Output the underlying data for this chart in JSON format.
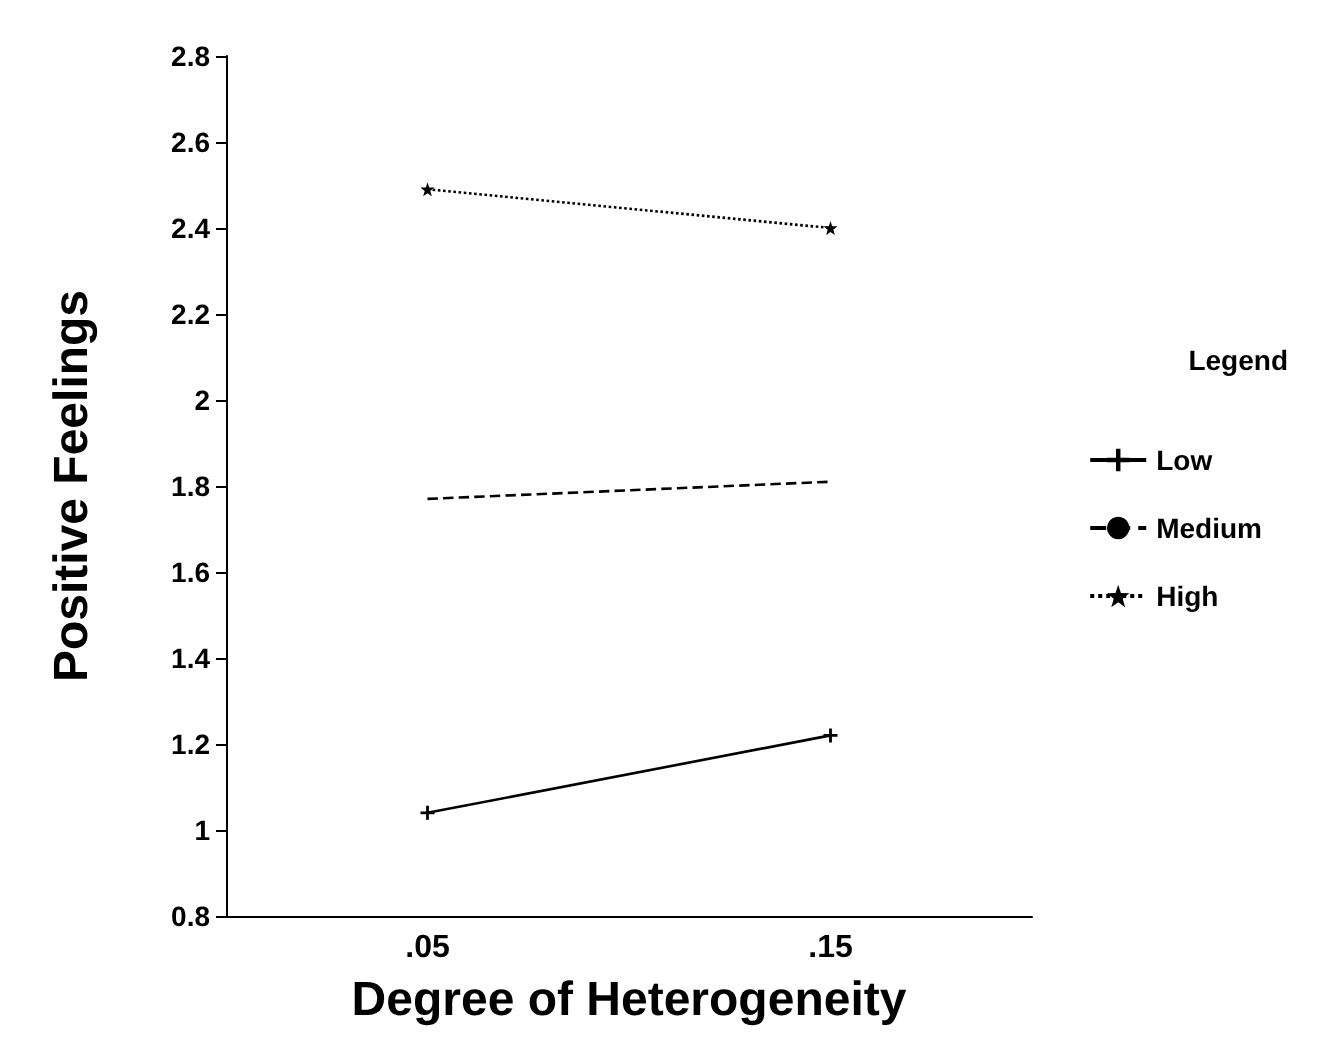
{
  "chart_data": {
    "type": "line",
    "xlabel": "Degree of Heterogeneity",
    "ylabel": "Positive Feelings",
    "legend_title": "Legend",
    "categories": [
      ".05",
      ".15"
    ],
    "series": [
      {
        "name": "Low",
        "color": "#000000",
        "values": [
          1.04,
          1.22
        ],
        "marker": "cross",
        "line_style": "solid"
      },
      {
        "name": "Medium",
        "color": "#000000",
        "values": [
          1.77,
          1.81
        ],
        "marker": "none",
        "line_style": "dashed"
      },
      {
        "name": "High",
        "color": "#000000",
        "values": [
          2.49,
          2.4
        ],
        "marker": "star",
        "line_style": "dotted"
      }
    ],
    "ylim": [
      0.8,
      2.8
    ],
    "yticks": [
      0.8,
      1,
      1.2,
      1.4,
      1.6,
      1.8,
      2,
      2.2,
      2.4,
      2.6,
      2.8
    ],
    "grid": false,
    "legend": "right"
  }
}
